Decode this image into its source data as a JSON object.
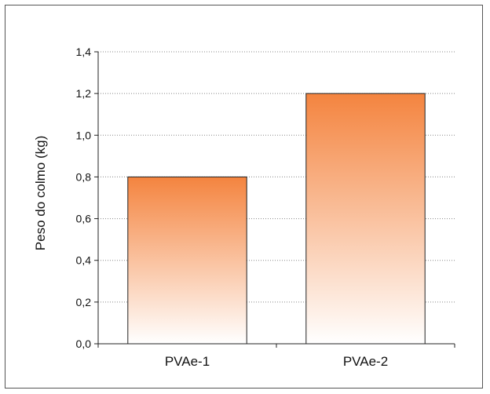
{
  "chart_data": {
    "type": "bar",
    "title": "",
    "xlabel": "",
    "ylabel": "Peso do colmo (kg)",
    "categories": [
      "PVAe-1",
      "PVAe-2"
    ],
    "values": [
      0.8,
      1.2
    ],
    "ylim": [
      0,
      1.4
    ],
    "yticks": [
      0.0,
      0.2,
      0.4,
      0.6,
      0.8,
      1.0,
      1.2,
      1.4
    ],
    "ytick_labels": [
      "0,0",
      "0,2",
      "0,4",
      "0,6",
      "0,8",
      "1,0",
      "1,2",
      "1,4"
    ],
    "grid": "horizontal-dotted",
    "bar_gradient": {
      "top": "#f4843f",
      "bottom": "#ffffff"
    },
    "bar_outline": "#222222"
  }
}
